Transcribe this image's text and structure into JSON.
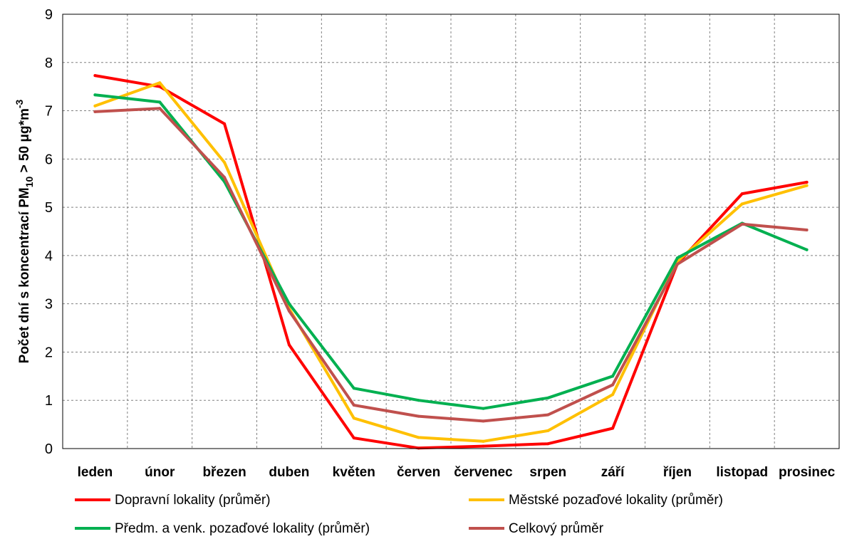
{
  "chart_data": {
    "type": "line",
    "title": "",
    "xlabel": "",
    "ylabel": {
      "prefix": "Počet dní s koncentrací PM",
      "subscript": "10",
      "middle": " > 50 μg*m",
      "superscript": "-3"
    },
    "categories": [
      "leden",
      "únor",
      "březen",
      "duben",
      "květen",
      "červen",
      "červenec",
      "srpen",
      "září",
      "říjen",
      "listopad",
      "prosinec"
    ],
    "ylim": [
      0,
      9
    ],
    "yticks": [
      "0",
      "1",
      "2",
      "3",
      "4",
      "5",
      "6",
      "7",
      "8",
      "9"
    ],
    "grid": true,
    "legend_position": "bottom",
    "series": [
      {
        "name": "Dopravní lokality (průměr)",
        "color": "#ff0000",
        "values": [
          7.73,
          7.5,
          6.73,
          2.15,
          0.22,
          0.01,
          0.05,
          0.1,
          0.42,
          3.83,
          5.28,
          5.52
        ]
      },
      {
        "name": "Městské pozaďové lokality (průměr)",
        "color": "#ffc000",
        "values": [
          7.1,
          7.58,
          5.93,
          2.9,
          0.63,
          0.23,
          0.15,
          0.37,
          1.12,
          3.88,
          5.07,
          5.45
        ]
      },
      {
        "name": "Předm. a venk. pozaďové lokality (průměr)",
        "color": "#00b050",
        "values": [
          7.33,
          7.18,
          5.53,
          3.0,
          1.25,
          1.0,
          0.83,
          1.05,
          1.5,
          3.95,
          4.67,
          4.12
        ]
      },
      {
        "name": "Celkový průměr",
        "color": "#c0504d",
        "values": [
          6.98,
          7.05,
          5.62,
          2.85,
          0.9,
          0.67,
          0.57,
          0.7,
          1.32,
          3.82,
          4.65,
          4.53
        ]
      }
    ]
  }
}
